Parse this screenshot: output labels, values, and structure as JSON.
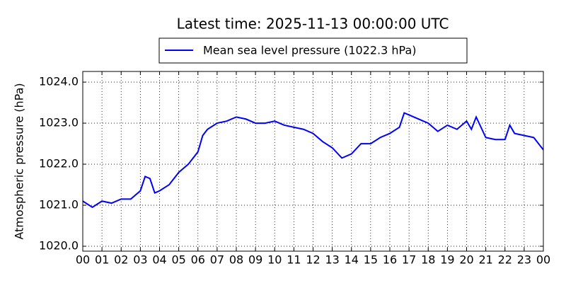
{
  "chart_data": {
    "type": "line",
    "title": "Latest time: 2025-11-13 00:00:00 UTC",
    "ylabel": "Atmospheric pressure (hPa)",
    "x": [
      0,
      0.5,
      1,
      1.5,
      2,
      2.5,
      3,
      3.25,
      3.5,
      3.75,
      4,
      4.5,
      5,
      5.5,
      6,
      6.25,
      6.5,
      7,
      7.5,
      8,
      8.5,
      9,
      9.5,
      10,
      10.5,
      11,
      11.5,
      12,
      12.5,
      13,
      13.5,
      14,
      14.5,
      15,
      15.5,
      16,
      16.5,
      16.75,
      17,
      17.5,
      18,
      18.5,
      19,
      19.5,
      20,
      20.25,
      20.5,
      21,
      21.5,
      22,
      22.25,
      22.5,
      23,
      23.5,
      24
    ],
    "series": [
      {
        "name": "Mean sea level pressure (1022.3 hPa)",
        "color": "#0000ff",
        "values": [
          1021.1,
          1020.95,
          1021.1,
          1021.05,
          1021.15,
          1021.15,
          1021.35,
          1021.7,
          1021.65,
          1021.3,
          1021.35,
          1021.5,
          1021.8,
          1022.0,
          1022.3,
          1022.7,
          1022.85,
          1023.0,
          1023.05,
          1023.15,
          1023.1,
          1023.0,
          1023.0,
          1023.05,
          1022.95,
          1022.9,
          1022.85,
          1022.75,
          1022.55,
          1022.4,
          1022.15,
          1022.25,
          1022.5,
          1022.5,
          1022.65,
          1022.75,
          1022.9,
          1023.25,
          1023.2,
          1023.1,
          1023.0,
          1022.8,
          1022.95,
          1022.85,
          1023.05,
          1022.85,
          1023.15,
          1022.65,
          1022.6,
          1022.6,
          1022.95,
          1022.75,
          1022.7,
          1022.65,
          1022.35
        ]
      }
    ],
    "xlim": [
      0,
      24
    ],
    "xticks": [
      {
        "value": 0,
        "label": "00"
      },
      {
        "value": 1,
        "label": "01"
      },
      {
        "value": 2,
        "label": "02"
      },
      {
        "value": 3,
        "label": "03"
      },
      {
        "value": 4,
        "label": "04"
      },
      {
        "value": 5,
        "label": "05"
      },
      {
        "value": 6,
        "label": "06"
      },
      {
        "value": 7,
        "label": "07"
      },
      {
        "value": 8,
        "label": "08"
      },
      {
        "value": 9,
        "label": "09"
      },
      {
        "value": 10,
        "label": "10"
      },
      {
        "value": 11,
        "label": "11"
      },
      {
        "value": 12,
        "label": "12"
      },
      {
        "value": 13,
        "label": "13"
      },
      {
        "value": 14,
        "label": "14"
      },
      {
        "value": 15,
        "label": "15"
      },
      {
        "value": 16,
        "label": "16"
      },
      {
        "value": 17,
        "label": "17"
      },
      {
        "value": 18,
        "label": "18"
      },
      {
        "value": 19,
        "label": "19"
      },
      {
        "value": 20,
        "label": "20"
      },
      {
        "value": 21,
        "label": "21"
      },
      {
        "value": 22,
        "label": "22"
      },
      {
        "value": 23,
        "label": "23"
      },
      {
        "value": 24,
        "label": "00"
      }
    ],
    "ylim": [
      1019.88,
      1024.26
    ],
    "yticks": [
      {
        "value": 1020,
        "label": "1020.0"
      },
      {
        "value": 1021,
        "label": "1021.0"
      },
      {
        "value": 1022,
        "label": "1022.0"
      },
      {
        "value": 1023,
        "label": "1023.0"
      },
      {
        "value": 1024,
        "label": "1024.0"
      }
    ],
    "grid": true,
    "legend": "top"
  }
}
